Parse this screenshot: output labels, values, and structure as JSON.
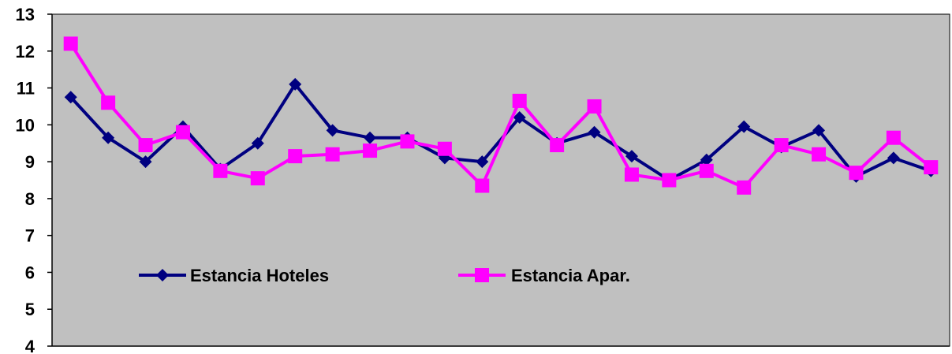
{
  "chart_data": {
    "type": "line",
    "title": "",
    "xlabel": "",
    "ylabel": "",
    "ylim": [
      4,
      13
    ],
    "yticks": [
      4,
      5,
      6,
      7,
      8,
      9,
      10,
      11,
      12,
      13
    ],
    "grid": false,
    "legend": {
      "placement": "inside-lower-left"
    },
    "plot_background": "#c0c0c0",
    "x": [
      1,
      2,
      3,
      4,
      5,
      6,
      7,
      8,
      9,
      10,
      11,
      12,
      13,
      14,
      15,
      16,
      17,
      18,
      19,
      20,
      21,
      22,
      23,
      24
    ],
    "series": [
      {
        "name": "Estancia Hoteles",
        "color": "#000080",
        "marker": "diamond",
        "values": [
          10.75,
          9.65,
          9.0,
          9.95,
          8.8,
          9.5,
          11.1,
          9.85,
          9.65,
          9.65,
          9.1,
          9.0,
          10.2,
          9.5,
          9.8,
          9.15,
          8.5,
          9.05,
          9.95,
          9.4,
          9.85,
          8.6,
          9.1,
          8.75
        ]
      },
      {
        "name": "Estancia Apar.",
        "color": "#ff00ff",
        "marker": "square",
        "values": [
          12.2,
          10.6,
          9.45,
          9.8,
          8.75,
          8.55,
          9.15,
          9.2,
          9.3,
          9.55,
          9.35,
          8.35,
          10.65,
          9.45,
          10.5,
          8.65,
          8.5,
          8.75,
          8.3,
          9.45,
          9.2,
          8.7,
          9.65,
          8.85
        ]
      }
    ]
  }
}
